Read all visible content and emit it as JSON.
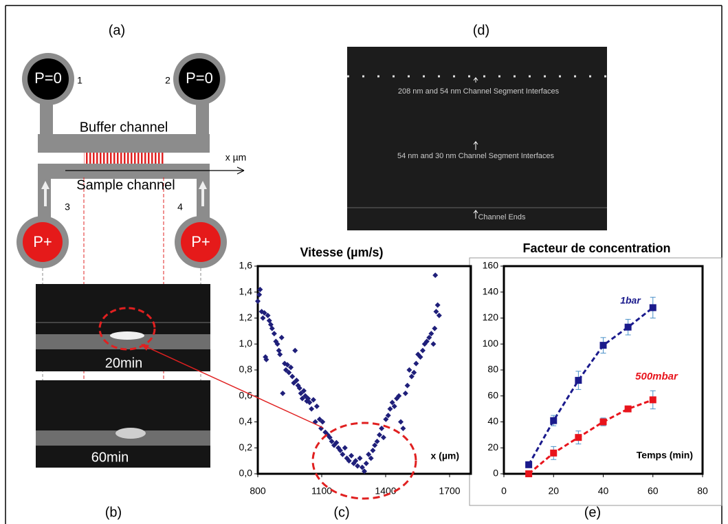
{
  "panels": {
    "a": {
      "label": "(a)",
      "outlets": [
        "P=0",
        "P=0"
      ],
      "outlet_numbers": [
        "1",
        "2"
      ],
      "buffer": "Buffer channel",
      "axis": "x µm",
      "sample": "Sample channel",
      "inlet_numbers": [
        "3",
        "4"
      ],
      "inlets": [
        "P+",
        "P+"
      ]
    },
    "b": {
      "label": "(b)",
      "times": [
        "20min",
        "60min"
      ]
    },
    "c": {
      "label": "(c)"
    },
    "d": {
      "label": "(d)",
      "annotations": [
        "208 nm and 54 nm Channel Segment Interfaces",
        "54 nm and 30 nm Channel Segment Interfaces",
        "Channel Ends"
      ]
    },
    "e": {
      "label": "(e)"
    }
  },
  "chart_data": [
    {
      "type": "scatter",
      "title": "Vitesse (µm/s)",
      "x_label": "x (µm)",
      "color": "#1f1f7a",
      "x": [
        800,
        807,
        811,
        818,
        824,
        831,
        836,
        840,
        847,
        854,
        861,
        867,
        877,
        885,
        892,
        899,
        904,
        912,
        917,
        926,
        932,
        939,
        946,
        955,
        962,
        969,
        975,
        982,
        989,
        996,
        1002,
        1009,
        1016,
        1023,
        1030,
        1036,
        1043,
        1052,
        1061,
        1070,
        1077,
        1090,
        1097,
        1104,
        1117,
        1128,
        1138,
        1147,
        1158,
        1169,
        1178,
        1187,
        1198,
        1209,
        1218,
        1228,
        1239,
        1250,
        1259,
        1268,
        1279,
        1290,
        1300,
        1309,
        1320,
        1331,
        1340,
        1349,
        1360,
        1371,
        1381,
        1390,
        1401,
        1412,
        1421,
        1431,
        1441,
        1452,
        1462,
        1471,
        1482,
        1493,
        1502,
        1511,
        1522,
        1533,
        1543,
        1552,
        1563,
        1574,
        1583,
        1593,
        1604,
        1614,
        1624,
        1630,
        1637,
        1644,
        1633,
        1651
      ],
      "values": [
        1.33,
        1.38,
        1.42,
        1.25,
        1.2,
        1.24,
        0.9,
        0.88,
        1.22,
        1.18,
        1.15,
        1.12,
        1.08,
        1.02,
        1.0,
        0.95,
        0.92,
        1.05,
        0.62,
        0.85,
        0.8,
        0.84,
        0.78,
        0.82,
        0.75,
        0.7,
        0.95,
        0.72,
        0.68,
        0.66,
        0.62,
        0.58,
        0.64,
        0.6,
        0.56,
        0.58,
        0.55,
        0.5,
        0.57,
        0.4,
        0.52,
        0.42,
        0.35,
        0.4,
        0.32,
        0.3,
        0.28,
        0.25,
        0.22,
        0.24,
        0.2,
        0.18,
        0.15,
        0.2,
        0.12,
        0.1,
        0.14,
        0.08,
        0.1,
        0.06,
        0.12,
        0.05,
        0.02,
        0.08,
        0.15,
        0.12,
        0.18,
        0.22,
        0.25,
        0.3,
        0.35,
        0.28,
        0.42,
        0.45,
        0.5,
        0.55,
        0.52,
        0.58,
        0.6,
        0.4,
        0.35,
        0.62,
        0.68,
        0.8,
        0.75,
        0.78,
        0.85,
        0.92,
        0.9,
        0.95,
        1.0,
        1.02,
        1.05,
        1.08,
        1.0,
        1.12,
        1.25,
        1.3,
        1.53,
        1.22
      ],
      "xlim": [
        800,
        1800
      ],
      "xticks": [
        800,
        1100,
        1400,
        1700
      ],
      "ylim": [
        0,
        1.6
      ],
      "yticks": [
        {
          "value": 0,
          "label": "0,0"
        },
        {
          "value": 0.2,
          "label": "0,2"
        },
        {
          "value": 0.4,
          "label": "0,4"
        },
        {
          "value": 0.6,
          "label": "0,6"
        },
        {
          "value": 0.8,
          "label": "0,8"
        },
        {
          "value": 1.0,
          "label": "1,0"
        },
        {
          "value": 1.2,
          "label": "1,2"
        },
        {
          "value": 1.4,
          "label": "1,4"
        },
        {
          "value": 1.6,
          "label": "1,6"
        }
      ]
    },
    {
      "type": "line",
      "title": "Facteur de concentration",
      "x_label": "Temps (min)",
      "x": [
        10,
        20,
        30,
        40,
        50,
        60
      ],
      "series": [
        {
          "name": "1bar",
          "color": "#1a1a8c",
          "values": [
            7,
            41,
            72,
            99,
            113,
            128
          ],
          "error": [
            2,
            4,
            7,
            6,
            6,
            8
          ]
        },
        {
          "name": "500mbar",
          "color": "#e8141c",
          "values": [
            0,
            16,
            28,
            40,
            50,
            57
          ],
          "error": [
            2,
            5,
            5,
            3,
            2,
            7
          ]
        }
      ],
      "xlim": [
        0,
        80
      ],
      "xticks": [
        0,
        20,
        40,
        60,
        80
      ],
      "ylim": [
        0,
        160
      ],
      "yticks": [
        0,
        20,
        40,
        60,
        80,
        100,
        120,
        140,
        160
      ]
    }
  ]
}
